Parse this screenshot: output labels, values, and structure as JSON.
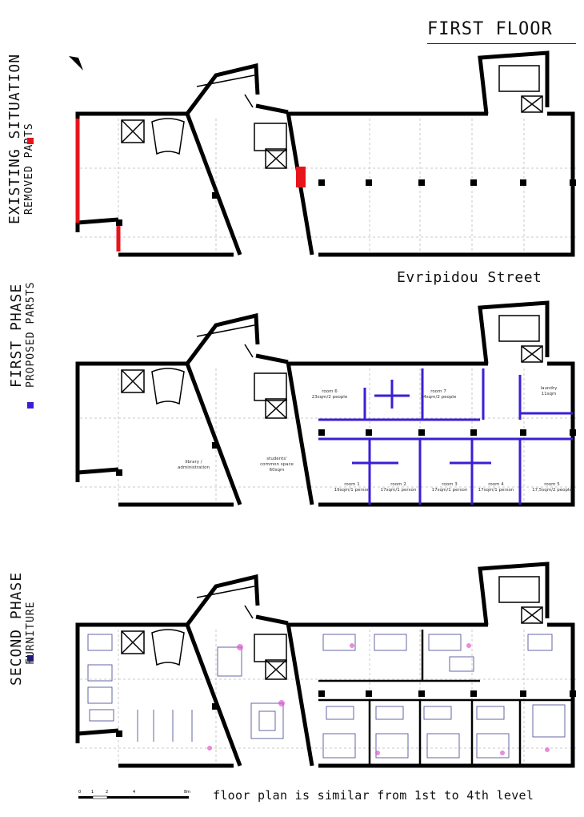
{
  "header": {
    "title": "FIRST FLOOR"
  },
  "street_label": "Evripidou Street",
  "footer_note": "floor plan is similar from 1st to 4th level",
  "colors": {
    "removed": "#e8141c",
    "proposed": "#3a1fd6",
    "furniture": "#1f1a72",
    "wall": "#000000"
  },
  "sections": [
    {
      "title": "EXISTING SITUATION",
      "subtitle": "REMOVED PARTS",
      "swatch": "removed"
    },
    {
      "title": "FIRST PHASE",
      "subtitle": "PROPOSED PAR5TS",
      "swatch": "proposed"
    },
    {
      "title": "SECOND PHASE",
      "subtitle": "FURNITURE",
      "swatch": "furniture"
    }
  ],
  "rooms": {
    "room6": {
      "name": "room 6",
      "area": "23sqm/2 people"
    },
    "room7": {
      "name": "room 7",
      "area": "24sqm/2 people"
    },
    "laundry": {
      "name": "laundry",
      "area": "11sqm"
    },
    "library": {
      "name": "library /",
      "area": "administration"
    },
    "common": {
      "name": "students'",
      "area": "common space",
      "extra": "60sqm"
    },
    "room1": {
      "name": "room 1",
      "area": "19sqm/1 person"
    },
    "room2": {
      "name": "room 2",
      "area": "17sqm/1 person"
    },
    "room3": {
      "name": "room 3",
      "area": "17sqm/1 person"
    },
    "room4": {
      "name": "room 4",
      "area": "17sqm/1 person"
    },
    "room5": {
      "name": "room 5",
      "area": "17,5sqm/2 people"
    }
  },
  "scale_bar": {
    "ticks": [
      "0",
      "1",
      "2",
      "4",
      "8m"
    ]
  },
  "north_icon": "north-arrow-icon"
}
